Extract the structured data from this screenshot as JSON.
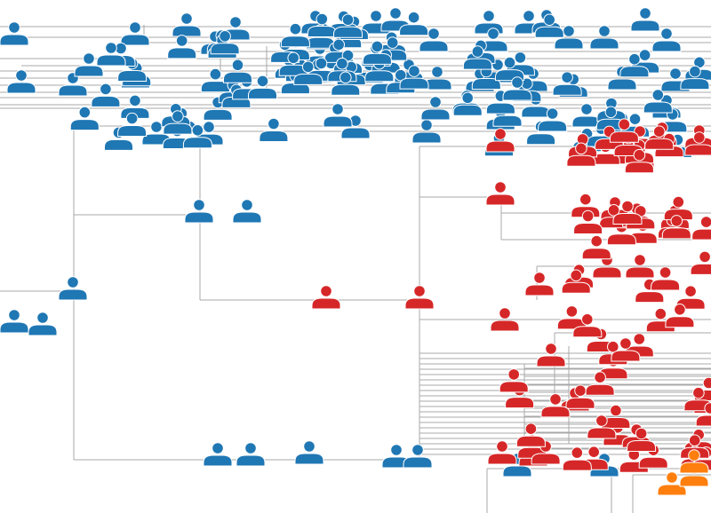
{
  "diagram": {
    "type": "family-tree",
    "colors": {
      "group_blue": "#1f77b4",
      "group_red": "#d62728",
      "group_orange": "#ff7f0e",
      "connector": "#a8a8a8"
    },
    "people_shown": {
      "blue": 143,
      "red": 84,
      "orange": 3
    }
  }
}
